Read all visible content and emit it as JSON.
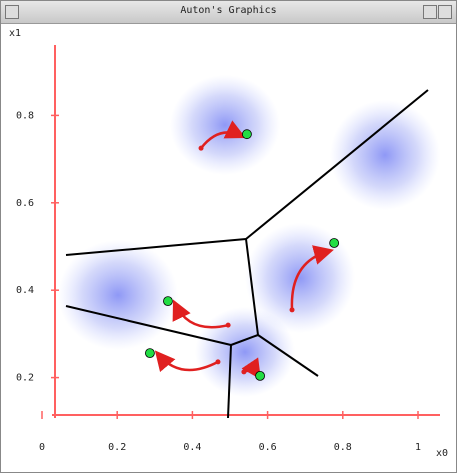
{
  "window": {
    "title": "Auton's Graphics"
  },
  "chart_data": {
    "type": "scatter",
    "x_label": "x0",
    "y_label": "x1",
    "xlim": [
      0,
      1
    ],
    "ylim": [
      0.08,
      0.97
    ],
    "xticks": [
      0,
      0.2,
      0.4,
      0.6,
      0.8,
      1
    ],
    "yticks": [
      0.2,
      0.4,
      0.6,
      0.8
    ],
    "series": [
      {
        "color": "#e02020",
        "x": [
          0.423,
          0.665,
          0.495,
          0.468,
          0.537
        ],
        "values": [
          0.725,
          0.355,
          0.32,
          0.236,
          0.213
        ]
      },
      {
        "color": "#22dd44",
        "x": [
          0.545,
          0.777,
          0.335,
          0.287,
          0.58
        ],
        "values": [
          0.757,
          0.508,
          0.375,
          0.256,
          0.204
        ]
      }
    ]
  }
}
